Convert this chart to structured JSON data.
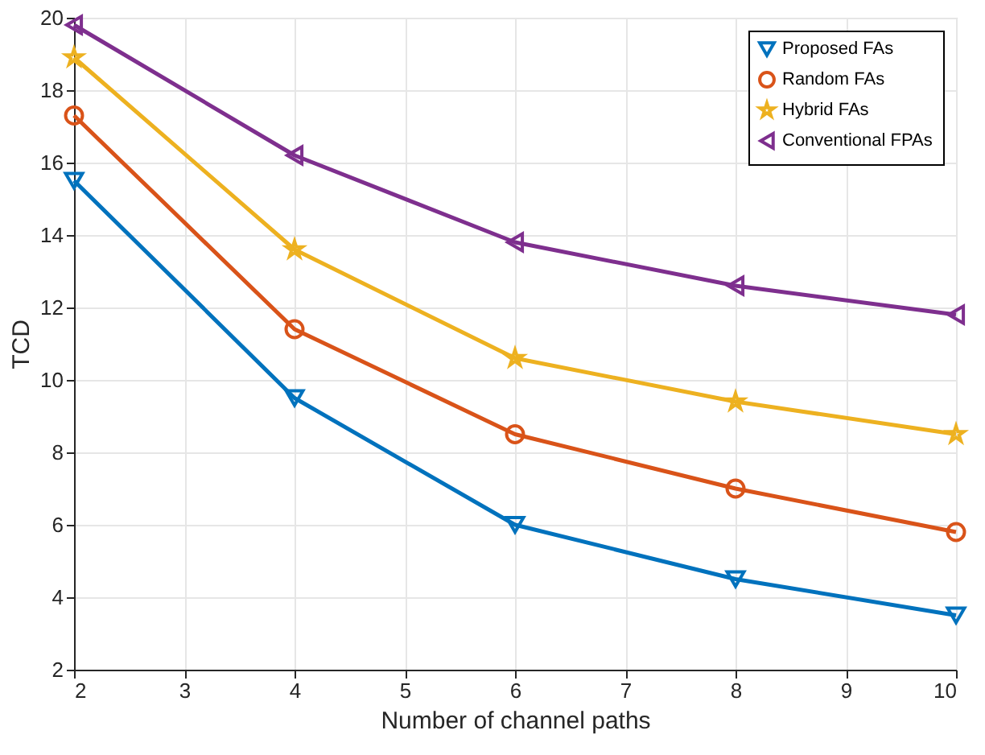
{
  "chart_data": {
    "type": "line",
    "xlabel": "Number of channel paths",
    "ylabel": "TCD",
    "x": [
      2,
      4,
      6,
      8,
      10
    ],
    "series": [
      {
        "name": "Proposed FAs",
        "color": "#0072bd",
        "marker": "triangle-down",
        "values": [
          15.5,
          9.5,
          6.0,
          4.5,
          3.5
        ]
      },
      {
        "name": "Random FAs",
        "color": "#d95319",
        "marker": "circle",
        "values": [
          17.3,
          11.4,
          8.5,
          7.0,
          5.8
        ]
      },
      {
        "name": "Hybrid FAs",
        "color": "#edb120",
        "marker": "star",
        "values": [
          18.9,
          13.6,
          10.6,
          9.4,
          8.5
        ]
      },
      {
        "name": "Conventional FPAs",
        "color": "#7e2f8e",
        "marker": "triangle-left",
        "values": [
          19.8,
          16.2,
          13.8,
          12.6,
          11.8
        ]
      }
    ],
    "xlim": [
      2,
      10
    ],
    "xticks": [
      2,
      3,
      4,
      5,
      6,
      7,
      8,
      9,
      10
    ],
    "ylim": [
      2,
      20
    ],
    "yticks": [
      2,
      4,
      6,
      8,
      10,
      12,
      14,
      16,
      18,
      20
    ],
    "grid": true,
    "legend": "top right",
    "line_style": "solid"
  }
}
